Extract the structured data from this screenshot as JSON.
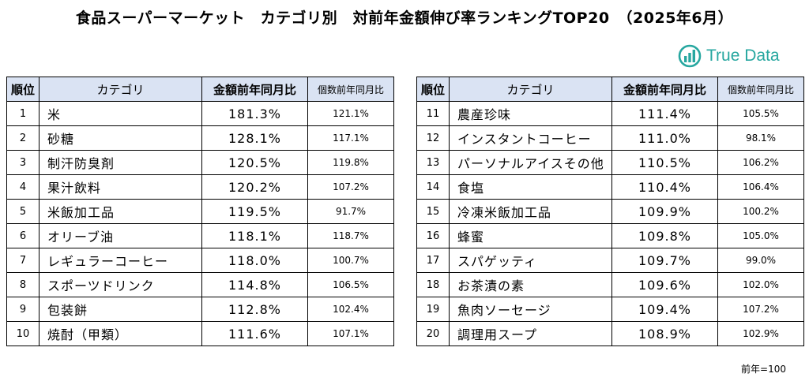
{
  "title": "食品スーパーマーケット　カテゴリ別　対前年金額伸び率ランキングTOP20　（2025年6月）",
  "logo": {
    "text": "True Data",
    "color": "#27a7a0",
    "icon": "bar-chart-logo-icon"
  },
  "table": {
    "headers": {
      "rank": "順位",
      "category": "カテゴリ",
      "amount_yoy": "金額前年同月比",
      "quantity_yoy": "個数前年同月比"
    },
    "header_bg": "#dae3f3",
    "left_rows": [
      {
        "rank": "1",
        "category": "米",
        "amount": "181.3%",
        "quantity": "121.1%"
      },
      {
        "rank": "2",
        "category": "砂糖",
        "amount": "128.1%",
        "quantity": "117.1%"
      },
      {
        "rank": "3",
        "category": "制汗防臭剤",
        "amount": "120.5%",
        "quantity": "119.8%"
      },
      {
        "rank": "4",
        "category": "果汁飲料",
        "amount": "120.2%",
        "quantity": "107.2%"
      },
      {
        "rank": "5",
        "category": "米飯加工品",
        "amount": "119.5%",
        "quantity": "91.7%"
      },
      {
        "rank": "6",
        "category": "オリーブ油",
        "amount": "118.1%",
        "quantity": "118.7%"
      },
      {
        "rank": "7",
        "category": "レギュラーコーヒー",
        "amount": "118.0%",
        "quantity": "100.7%"
      },
      {
        "rank": "8",
        "category": "スポーツドリンク",
        "amount": "114.8%",
        "quantity": "106.5%"
      },
      {
        "rank": "9",
        "category": "包装餅",
        "amount": "112.8%",
        "quantity": "102.4%"
      },
      {
        "rank": "10",
        "category": "焼酎（甲類）",
        "amount": "111.6%",
        "quantity": "107.1%"
      }
    ],
    "right_rows": [
      {
        "rank": "11",
        "category": "農産珍味",
        "amount": "111.4%",
        "quantity": "105.5%"
      },
      {
        "rank": "12",
        "category": "インスタントコーヒー",
        "amount": "111.0%",
        "quantity": "98.1%"
      },
      {
        "rank": "13",
        "category": "パーソナルアイスその他",
        "amount": "110.5%",
        "quantity": "106.2%"
      },
      {
        "rank": "14",
        "category": "食塩",
        "amount": "110.4%",
        "quantity": "106.4%"
      },
      {
        "rank": "15",
        "category": "冷凍米飯加工品",
        "amount": "109.9%",
        "quantity": "100.2%"
      },
      {
        "rank": "16",
        "category": "蜂蜜",
        "amount": "109.8%",
        "quantity": "105.0%"
      },
      {
        "rank": "17",
        "category": "スパゲッティ",
        "amount": "109.7%",
        "quantity": "99.0%"
      },
      {
        "rank": "18",
        "category": "お茶漬の素",
        "amount": "109.6%",
        "quantity": "102.0%"
      },
      {
        "rank": "19",
        "category": "魚肉ソーセージ",
        "amount": "109.4%",
        "quantity": "107.2%"
      },
      {
        "rank": "20",
        "category": "調理用スープ",
        "amount": "108.9%",
        "quantity": "102.9%"
      }
    ]
  },
  "note": "前年=100"
}
